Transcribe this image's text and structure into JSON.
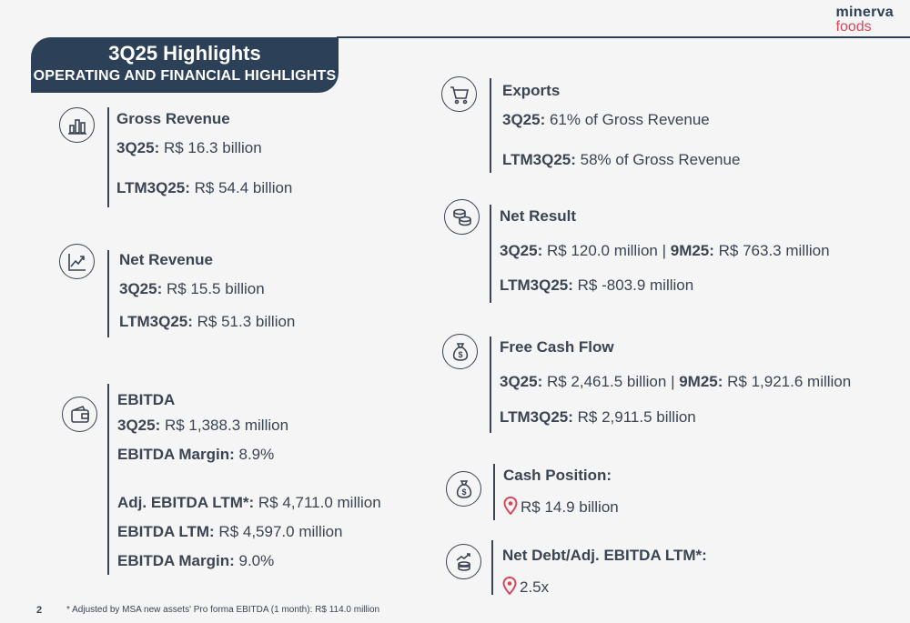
{
  "logo": {
    "line1": "minerva",
    "line2": "foods"
  },
  "banner": {
    "title": "3Q25 Highlights",
    "subtitle": "OPERATING AND FINANCIAL HIGHLIGHTS"
  },
  "left": {
    "gross_revenue": {
      "title": "Gross Revenue",
      "l1_label": "3Q25:",
      "l1_value": " R$ 16.3 billion",
      "l2_label": "LTM3Q25:",
      "l2_value": " R$ 54.4 billion"
    },
    "net_revenue": {
      "title": "Net Revenue",
      "l1_label": "3Q25:",
      "l1_value": " R$ 15.5 billion",
      "l2_label": "LTM3Q25:",
      "l2_value": " R$ 51.3 billion"
    },
    "ebitda": {
      "title": "EBITDA",
      "l1_label": "3Q25:",
      "l1_value": " R$ 1,388.3 million",
      "l2_label": "EBITDA Margin:",
      "l2_value": " 8.9%",
      "l3_label": "Adj. EBITDA LTM*:",
      "l3_value": " R$ 4,711.0 million",
      "l4_label": "EBITDA LTM:",
      "l4_value": " R$ 4,597.0 million",
      "l5_label": "EBITDA Margin:",
      "l5_value": " 9.0%"
    }
  },
  "right": {
    "exports": {
      "title": "Exports",
      "l1_label": "3Q25:",
      "l1_value": " 61% of Gross Revenue",
      "l2_label": "LTM3Q25:",
      "l2_value": " 58% of Gross Revenue"
    },
    "net_result": {
      "title": "Net Result",
      "l1_label": "3Q25:",
      "l1_value": " R$ 120.0 million | ",
      "l1_label2": "9M25:",
      "l1_value2": " R$ 763.3 million",
      "l2_label": "LTM3Q25:",
      "l2_value": " R$ -803.9 million"
    },
    "free_cash_flow": {
      "title": "Free Cash Flow",
      "l1_label": "3Q25:",
      "l1_value": " R$ 2,461.5 billion | ",
      "l1_label2": "9M25:",
      "l1_value2": " R$ 1,921.6 million",
      "l2_label": "LTM3Q25:",
      "l2_value": " R$ 2,911.5 billion"
    },
    "cash_position": {
      "title": "Cash Position:",
      "value": "R$ 14.9 billion"
    },
    "net_debt": {
      "title": "Net Debt/Adj. EBITDA LTM*:",
      "value": "2.5x"
    }
  },
  "footer": {
    "page": "2",
    "note": "* Adjusted by MSA new assets' Pro forma EBITDA (1 month): R$ 114.0 million"
  }
}
